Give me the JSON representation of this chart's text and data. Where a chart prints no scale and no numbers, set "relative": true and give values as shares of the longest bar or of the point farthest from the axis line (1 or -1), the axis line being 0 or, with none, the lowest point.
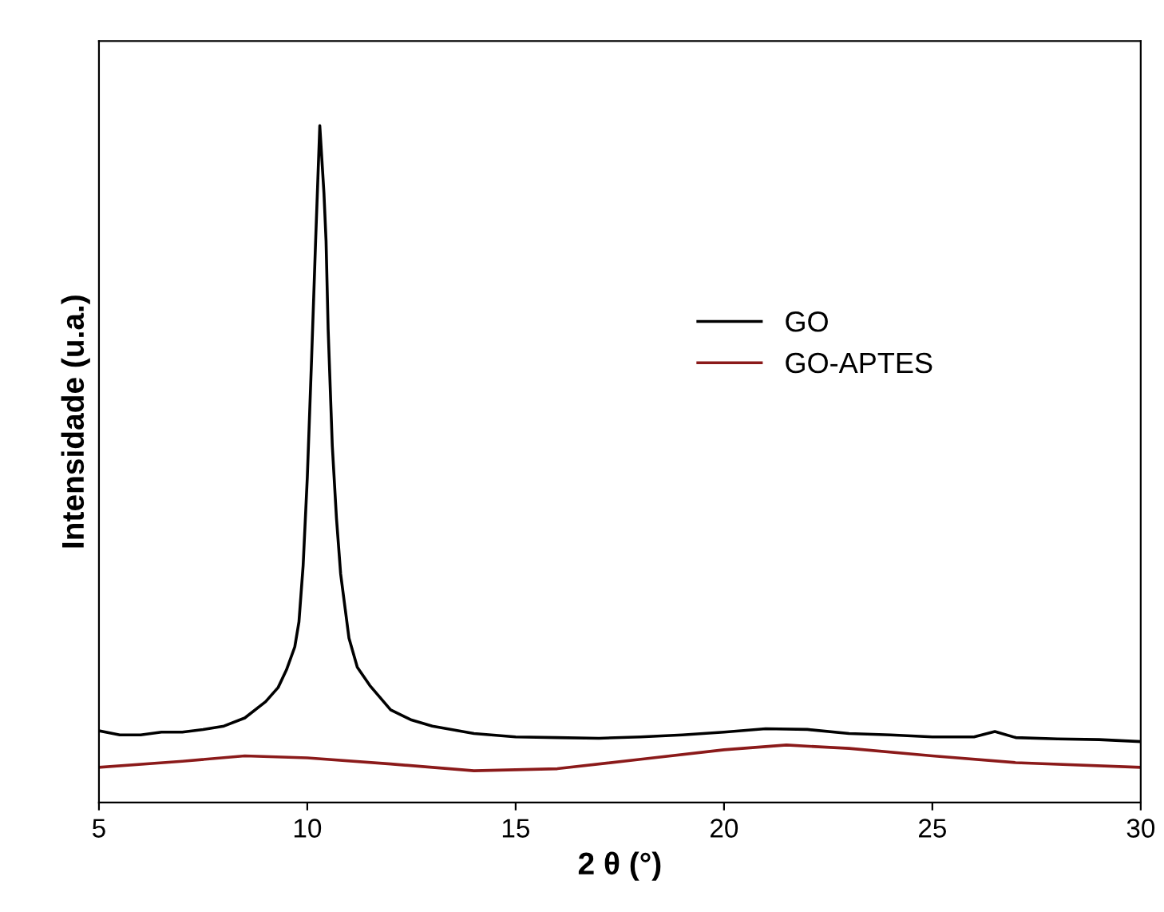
{
  "chart_data": {
    "type": "line",
    "relative": true,
    "xlabel": "2 θ (°)",
    "ylabel": "Intensidade (u.a.)",
    "xlim": [
      5,
      30
    ],
    "xticks": [
      5,
      10,
      15,
      20,
      25,
      30
    ],
    "legend": "right",
    "grid": false,
    "tick_labels": "x",
    "series": [
      {
        "name": "GO",
        "color": "#000000",
        "x": [
          5,
          5.5,
          6,
          6.5,
          7,
          7.5,
          8,
          8.5,
          9,
          9.3,
          9.5,
          9.7,
          9.8,
          9.9,
          10,
          10.1,
          10.2,
          10.3,
          10.4,
          10.45,
          10.5,
          10.6,
          10.7,
          10.8,
          11,
          11.2,
          11.5,
          12,
          12.5,
          13,
          14,
          15,
          16,
          17,
          18,
          19,
          20,
          21,
          22,
          23,
          24,
          25,
          26,
          26.5,
          27,
          28,
          29,
          30
        ],
        "values": [
          0.106,
          0.1,
          0.1,
          0.104,
          0.104,
          0.108,
          0.113,
          0.125,
          0.149,
          0.17,
          0.196,
          0.23,
          0.267,
          0.35,
          0.48,
          0.65,
          0.83,
          1.0,
          0.9,
          0.83,
          0.7,
          0.527,
          0.42,
          0.338,
          0.243,
          0.2,
          0.173,
          0.137,
          0.122,
          0.113,
          0.102,
          0.097,
          0.096,
          0.095,
          0.097,
          0.1,
          0.104,
          0.109,
          0.108,
          0.102,
          0.1,
          0.097,
          0.097,
          0.105,
          0.096,
          0.094,
          0.093,
          0.09
        ]
      },
      {
        "name": "GO-APTES",
        "color": "#8b1a1a",
        "x": [
          5,
          7,
          8.5,
          10,
          12,
          14,
          16,
          18,
          20,
          21.5,
          23,
          25,
          27,
          30
        ],
        "values": [
          0.052,
          0.061,
          0.069,
          0.066,
          0.057,
          0.047,
          0.05,
          0.064,
          0.078,
          0.085,
          0.08,
          0.069,
          0.059,
          0.052
        ]
      }
    ]
  }
}
